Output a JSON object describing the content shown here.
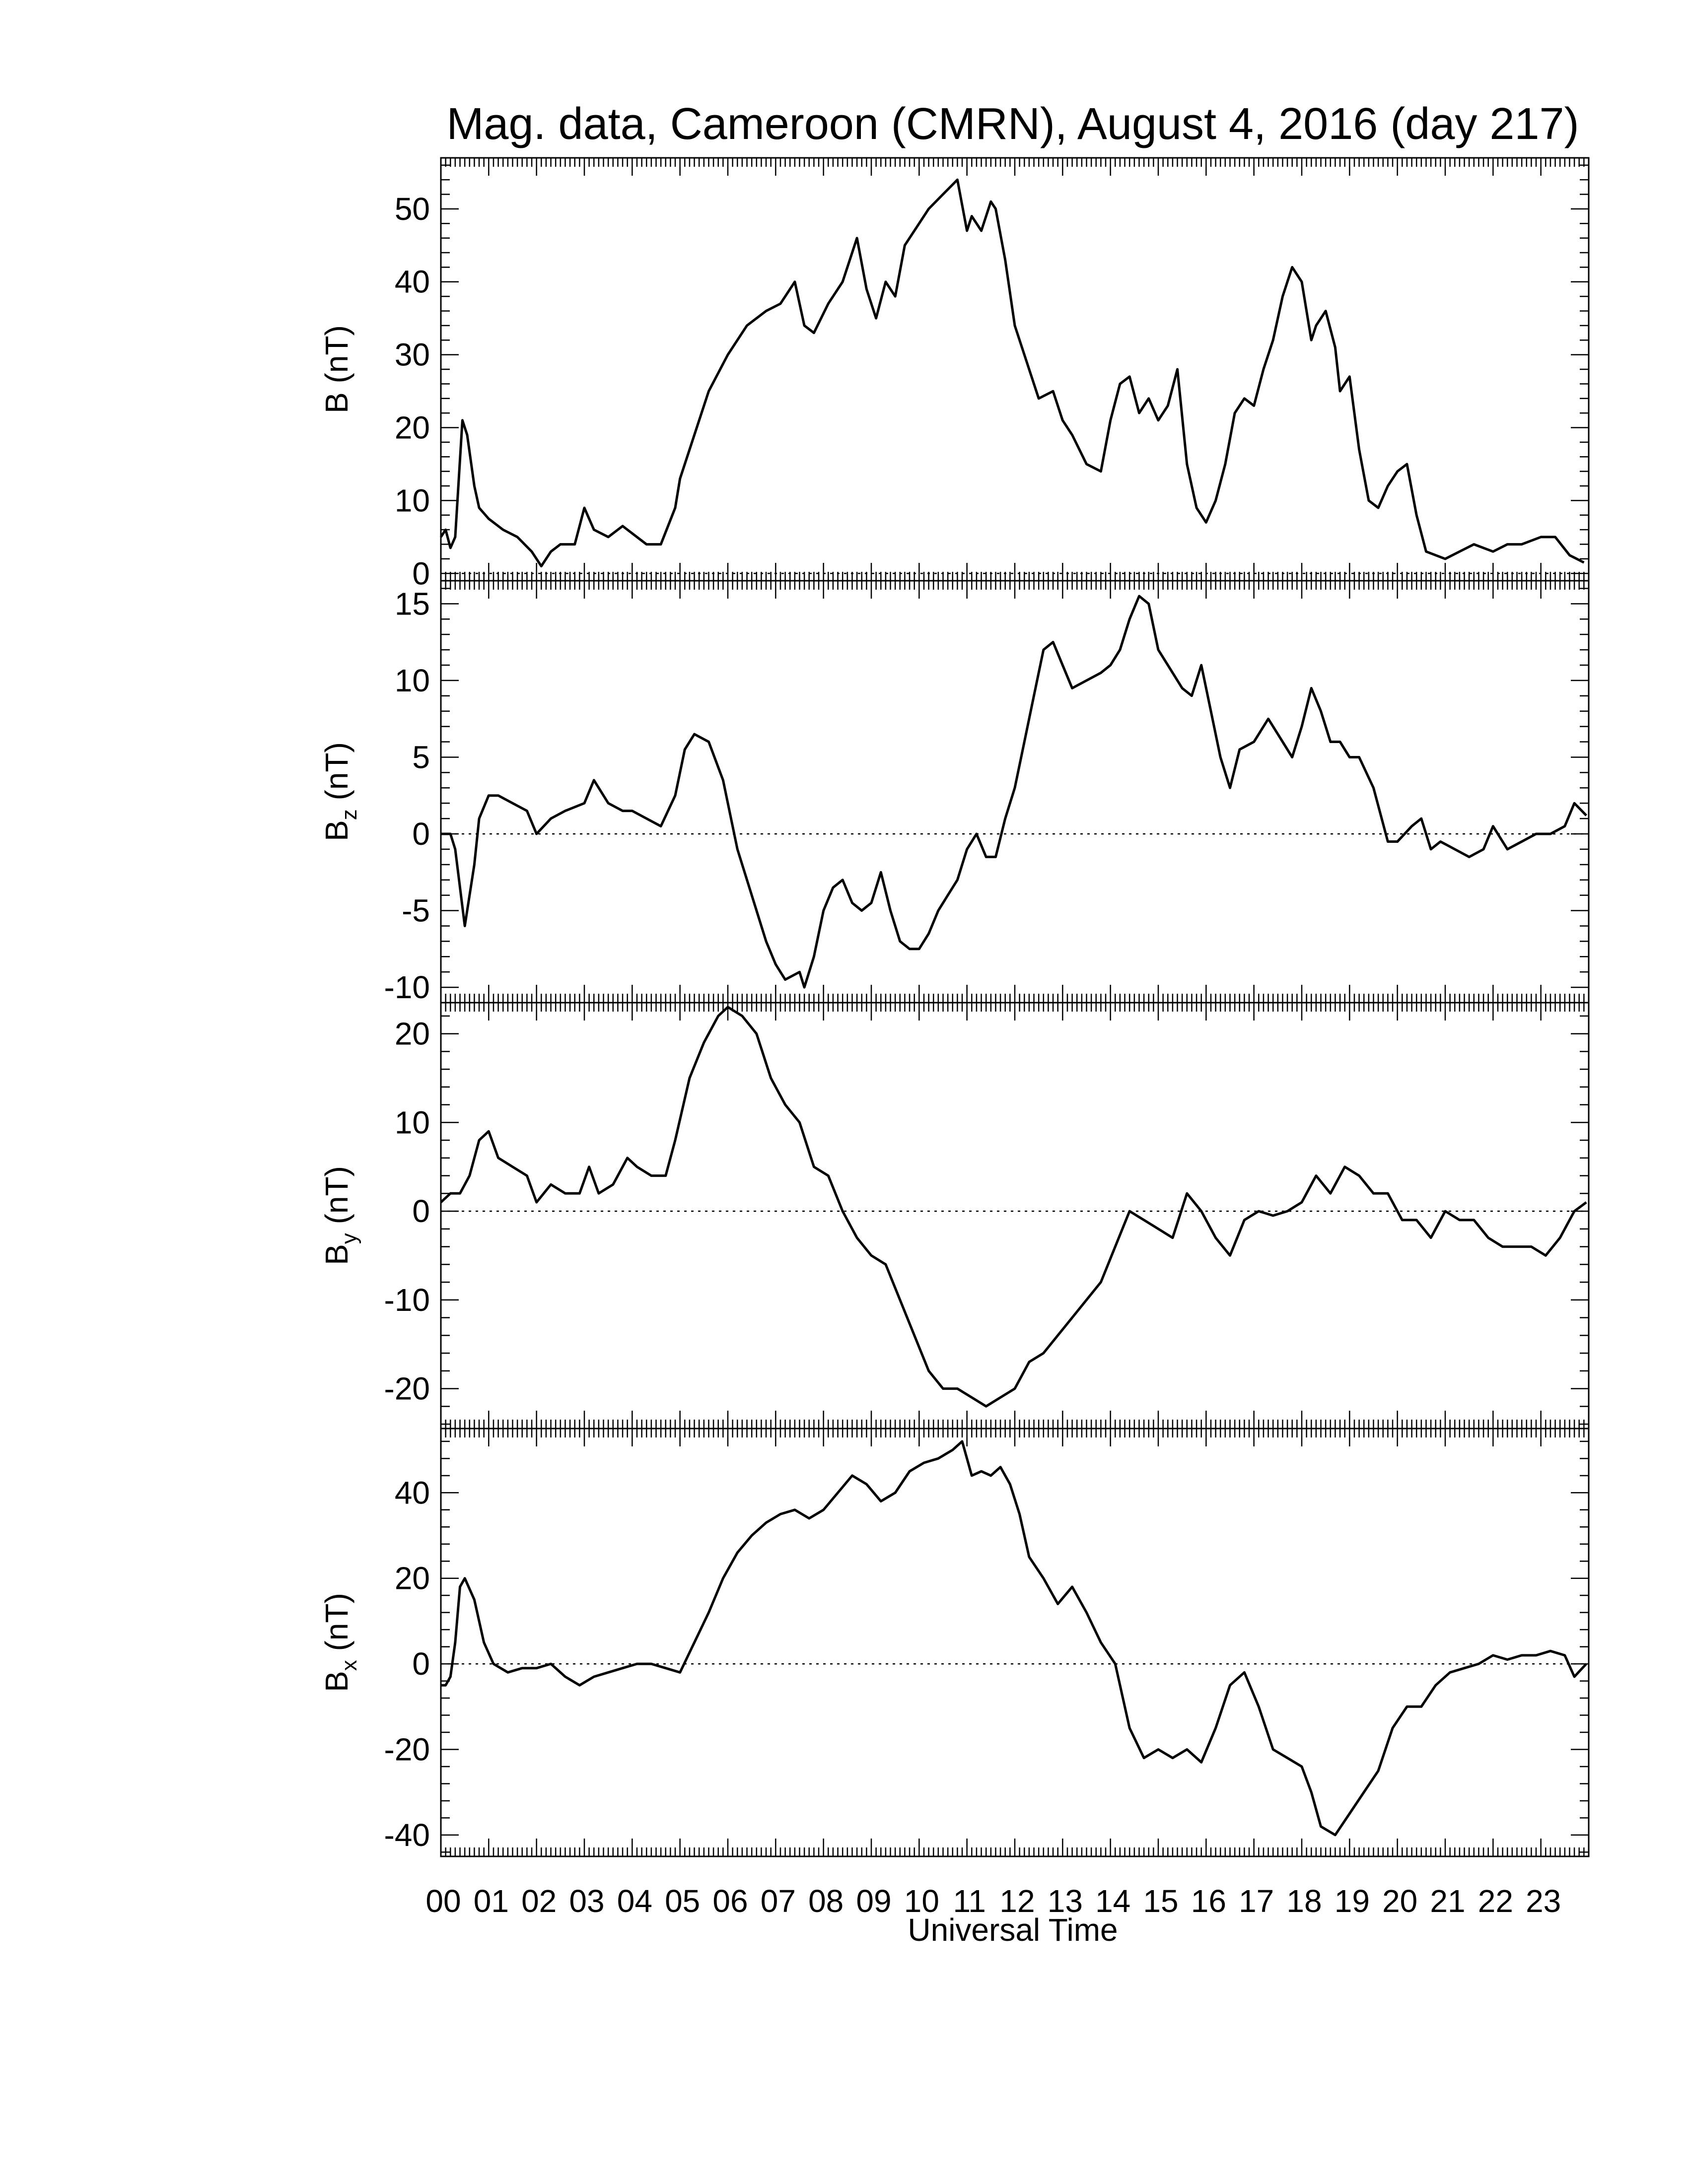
{
  "figure": {
    "title": "Mag. data, Cameroon (CMRN), August 4, 2016 (day 217)",
    "xlabel": "Universal Time",
    "xticks": [
      "00",
      "01",
      "02",
      "03",
      "04",
      "05",
      "06",
      "07",
      "08",
      "09",
      "10",
      "11",
      "12",
      "13",
      "14",
      "15",
      "16",
      "17",
      "18",
      "19",
      "20",
      "21",
      "22",
      "23"
    ]
  },
  "chart_data": [
    {
      "type": "line",
      "ylabel": "B (nT)",
      "ylim": [
        -1,
        57
      ],
      "yticks": [
        0,
        10,
        20,
        30,
        40,
        50
      ],
      "zero_line": true,
      "series": [
        {
          "x": [
            0,
            0.1,
            0.2,
            0.3,
            0.45,
            0.55,
            0.7,
            0.8,
            1.0,
            1.3,
            1.6,
            1.9,
            2.1,
            2.3,
            2.5,
            2.8,
            3.0,
            3.2,
            3.5,
            3.8,
            4.0,
            4.3,
            4.6,
            4.9,
            5.0,
            5.3,
            5.6,
            6.0,
            6.4,
            6.8,
            7.1,
            7.4,
            7.6,
            7.8,
            8.1,
            8.4,
            8.7,
            8.9,
            9.1,
            9.3,
            9.5,
            9.7,
            9.9,
            10.2,
            10.5,
            10.8,
            11.0,
            11.1,
            11.3,
            11.5,
            11.6,
            11.8,
            12.0,
            12.3,
            12.5,
            12.8,
            13.0,
            13.2,
            13.5,
            13.8,
            14.0,
            14.2,
            14.4,
            14.6,
            14.8,
            15.0,
            15.2,
            15.4,
            15.6,
            15.8,
            16.0,
            16.2,
            16.4,
            16.6,
            16.8,
            17.0,
            17.2,
            17.4,
            17.6,
            17.8,
            18.0,
            18.2,
            18.3,
            18.5,
            18.7,
            18.8,
            19.0,
            19.2,
            19.4,
            19.6,
            19.8,
            20.0,
            20.2,
            20.4,
            20.6,
            21.0,
            21.3,
            21.6,
            22.0,
            22.3,
            22.6,
            23.0,
            23.3,
            23.6,
            23.9
          ],
          "y": [
            5,
            6,
            3.5,
            5,
            21,
            19,
            12,
            9,
            7.5,
            6,
            5,
            3,
            1,
            3,
            4,
            4,
            9,
            6,
            5,
            6.5,
            5.5,
            4,
            4,
            9,
            13,
            19,
            25,
            30,
            34,
            36,
            37,
            40,
            34,
            33,
            37,
            40,
            46,
            39,
            35,
            40,
            38,
            45,
            47,
            50,
            52,
            54,
            47,
            49,
            47,
            51,
            50,
            43,
            34,
            28,
            24,
            25,
            21,
            19,
            15,
            14,
            21,
            26,
            27,
            22,
            24,
            21,
            23,
            28,
            15,
            9,
            7,
            10,
            15,
            22,
            24,
            23,
            28,
            32,
            38,
            42,
            40,
            32,
            34,
            36,
            31,
            25,
            27,
            17,
            10,
            9,
            12,
            14,
            15,
            8,
            3,
            2,
            3,
            4,
            3,
            4,
            4,
            5,
            5,
            2.5,
            1.5
          ]
        }
      ]
    },
    {
      "type": "line",
      "ylabel": "Bz (nT)",
      "ylim": [
        -11,
        16.5
      ],
      "yticks": [
        -10,
        -5,
        0,
        5,
        10,
        15
      ],
      "zero_line": true,
      "series": [
        {
          "x": [
            0,
            0.2,
            0.3,
            0.5,
            0.7,
            0.8,
            1.0,
            1.2,
            1.5,
            1.8,
            2.0,
            2.3,
            2.6,
            3.0,
            3.2,
            3.5,
            3.8,
            4.0,
            4.3,
            4.6,
            4.9,
            5.1,
            5.3,
            5.6,
            5.9,
            6.2,
            6.5,
            6.8,
            7.0,
            7.2,
            7.5,
            7.6,
            7.8,
            8.0,
            8.2,
            8.4,
            8.6,
            8.8,
            9.0,
            9.2,
            9.4,
            9.6,
            9.8,
            10.0,
            10.2,
            10.4,
            10.6,
            10.8,
            11.0,
            11.2,
            11.4,
            11.6,
            11.8,
            12.0,
            12.2,
            12.4,
            12.6,
            12.8,
            13.0,
            13.2,
            13.5,
            13.8,
            14.0,
            14.2,
            14.4,
            14.6,
            14.8,
            15.0,
            15.2,
            15.5,
            15.7,
            15.9,
            16.1,
            16.3,
            16.5,
            16.7,
            17.0,
            17.3,
            17.6,
            17.8,
            18.0,
            18.2,
            18.4,
            18.6,
            18.8,
            19.0,
            19.2,
            19.5,
            19.8,
            20.0,
            20.3,
            20.5,
            20.7,
            20.9,
            21.2,
            21.5,
            21.8,
            22.0,
            22.3,
            22.6,
            22.9,
            23.2,
            23.5,
            23.7,
            23.95
          ],
          "y": [
            0,
            0,
            -1,
            -6,
            -2,
            1,
            2.5,
            2.5,
            2,
            1.5,
            0,
            1,
            1.5,
            2,
            3.5,
            2,
            1.5,
            1.5,
            1,
            0.5,
            2.5,
            5.5,
            6.5,
            6,
            3.5,
            -1,
            -4,
            -7,
            -8.5,
            -9.5,
            -9,
            -10,
            -8,
            -5,
            -3.5,
            -3,
            -4.5,
            -5,
            -4.5,
            -2.5,
            -5,
            -7,
            -7.5,
            -7.5,
            -6.5,
            -5,
            -4,
            -3,
            -1,
            0,
            -1.5,
            -1.5,
            1,
            3,
            6,
            9,
            12,
            12.5,
            11,
            9.5,
            10,
            10.5,
            11,
            12,
            14,
            15.5,
            15,
            12,
            11,
            9.5,
            9,
            11,
            8,
            5,
            3,
            5.5,
            6,
            7.5,
            6,
            5,
            7,
            9.5,
            8,
            6,
            6,
            5,
            5,
            3,
            -0.5,
            -0.5,
            0.5,
            1,
            -1,
            -0.5,
            -1,
            -1.5,
            -1,
            0.5,
            -1,
            -0.5,
            0,
            0,
            0.5,
            2,
            1.2
          ]
        }
      ]
    },
    {
      "type": "line",
      "ylabel": "By (nT)",
      "ylim": [
        -24.5,
        23.5
      ],
      "yticks": [
        -20,
        -10,
        0,
        10,
        20
      ],
      "zero_line": true,
      "series": [
        {
          "x": [
            0,
            0.2,
            0.4,
            0.6,
            0.8,
            1.0,
            1.2,
            1.5,
            1.8,
            2.0,
            2.3,
            2.6,
            2.9,
            3.1,
            3.3,
            3.6,
            3.9,
            4.1,
            4.4,
            4.7,
            4.9,
            5.2,
            5.5,
            5.8,
            6.0,
            6.3,
            6.6,
            6.9,
            7.2,
            7.5,
            7.8,
            8.1,
            8.4,
            8.7,
            9.0,
            9.3,
            9.6,
            9.9,
            10.2,
            10.5,
            10.8,
            11.1,
            11.4,
            11.7,
            12.0,
            12.3,
            12.6,
            12.9,
            13.2,
            13.5,
            13.8,
            14.1,
            14.4,
            14.7,
            15.0,
            15.3,
            15.6,
            15.9,
            16.2,
            16.5,
            16.8,
            17.1,
            17.4,
            17.7,
            18.0,
            18.3,
            18.6,
            18.9,
            19.2,
            19.5,
            19.8,
            20.1,
            20.4,
            20.7,
            21.0,
            21.3,
            21.6,
            21.9,
            22.2,
            22.5,
            22.8,
            23.1,
            23.4,
            23.7,
            23.95
          ],
          "y": [
            1,
            2,
            2,
            4,
            8,
            9,
            6,
            5,
            4,
            1,
            3,
            2,
            2,
            5,
            2,
            3,
            6,
            5,
            4,
            4,
            8,
            15,
            19,
            22,
            23,
            22,
            20,
            15,
            12,
            10,
            5,
            4,
            0,
            -3,
            -5,
            -6,
            -10,
            -14,
            -18,
            -20,
            -20,
            -21,
            -22,
            -21,
            -20,
            -17,
            -16,
            -14,
            -12,
            -10,
            -8,
            -4,
            0,
            -1,
            -2,
            -3,
            2,
            0,
            -3,
            -5,
            -1,
            0,
            -0.5,
            0,
            1,
            4,
            2,
            5,
            4,
            2,
            2,
            -1,
            -1,
            -3,
            0,
            -1,
            -1,
            -3,
            -4,
            -4,
            -4,
            -5,
            -3,
            0,
            1
          ]
        }
      ]
    },
    {
      "type": "line",
      "ylabel": "Bx (nT)",
      "ylim": [
        -45,
        55
      ],
      "yticks": [
        -40,
        -20,
        0,
        20,
        40
      ],
      "zero_line": true,
      "series": [
        {
          "x": [
            0,
            0.1,
            0.2,
            0.3,
            0.4,
            0.5,
            0.7,
            0.9,
            1.1,
            1.4,
            1.7,
            2.0,
            2.3,
            2.6,
            2.9,
            3.2,
            3.5,
            3.8,
            4.1,
            4.4,
            4.7,
            5.0,
            5.3,
            5.6,
            5.9,
            6.2,
            6.5,
            6.8,
            7.1,
            7.4,
            7.7,
            8.0,
            8.3,
            8.6,
            8.9,
            9.2,
            9.5,
            9.8,
            10.1,
            10.4,
            10.7,
            10.9,
            11.1,
            11.3,
            11.5,
            11.7,
            11.9,
            12.1,
            12.3,
            12.6,
            12.9,
            13.2,
            13.5,
            13.8,
            14.1,
            14.4,
            14.7,
            15.0,
            15.3,
            15.6,
            15.9,
            16.2,
            16.5,
            16.8,
            17.1,
            17.4,
            17.7,
            18.0,
            18.2,
            18.4,
            18.7,
            19.0,
            19.3,
            19.6,
            19.9,
            20.2,
            20.5,
            20.8,
            21.1,
            21.4,
            21.7,
            22.0,
            22.3,
            22.6,
            22.9,
            23.2,
            23.5,
            23.7,
            23.95
          ],
          "y": [
            -5,
            -5,
            -3,
            5,
            18,
            20,
            15,
            5,
            0,
            -2,
            -1,
            -1,
            0,
            -3,
            -5,
            -3,
            -2,
            -1,
            0,
            0,
            -1,
            -2,
            5,
            12,
            20,
            26,
            30,
            33,
            35,
            36,
            34,
            36,
            40,
            44,
            42,
            38,
            40,
            45,
            47,
            48,
            50,
            52,
            44,
            45,
            44,
            46,
            42,
            35,
            25,
            20,
            14,
            18,
            12,
            5,
            0,
            -15,
            -22,
            -20,
            -22,
            -20,
            -23,
            -15,
            -5,
            -2,
            -10,
            -20,
            -22,
            -24,
            -30,
            -38,
            -40,
            -35,
            -30,
            -25,
            -15,
            -10,
            -10,
            -5,
            -2,
            -1,
            0,
            2,
            1,
            2,
            2,
            3,
            2,
            -3,
            0
          ]
        }
      ]
    }
  ]
}
